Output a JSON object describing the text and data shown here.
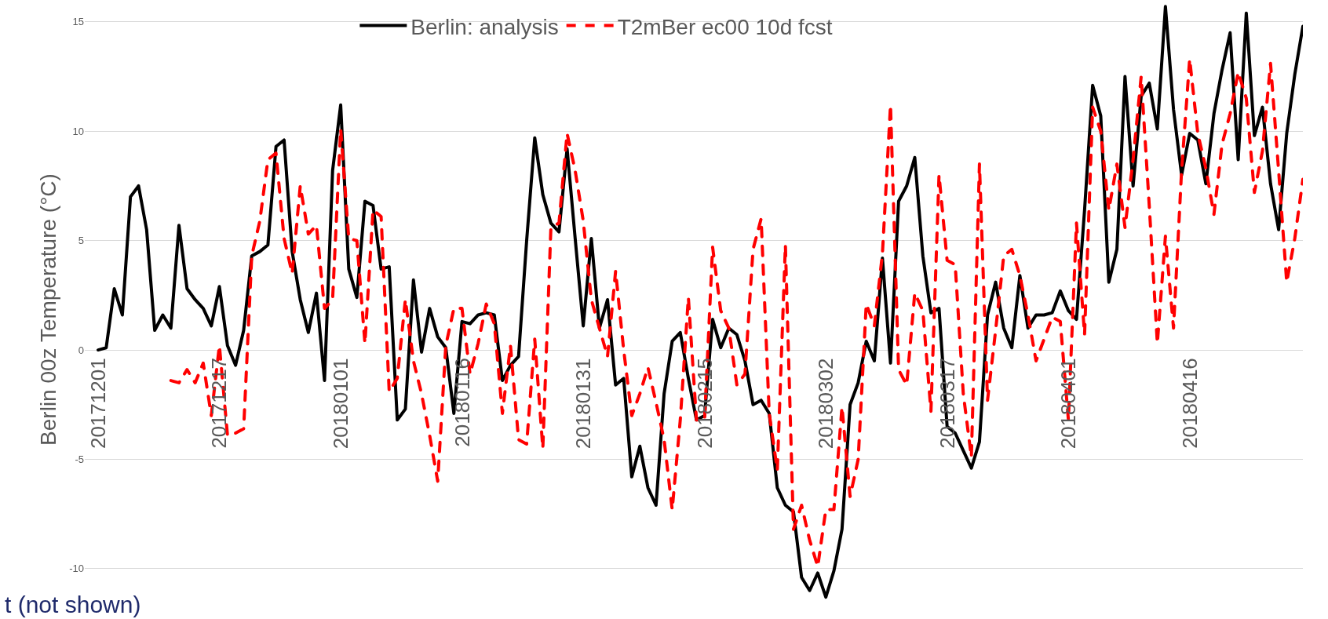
{
  "chart_data": {
    "type": "line",
    "ylabel": "Berlin 00z Temperature (°C)",
    "categories": [
      "20171201",
      null,
      null,
      null,
      null,
      null,
      null,
      null,
      null,
      null,
      null,
      null,
      null,
      null,
      null,
      "20171217",
      null,
      null,
      null,
      null,
      null,
      null,
      null,
      null,
      null,
      null,
      null,
      null,
      null,
      null,
      "20180101",
      null,
      null,
      null,
      null,
      null,
      null,
      null,
      null,
      null,
      null,
      null,
      null,
      null,
      null,
      "20180116",
      null,
      null,
      null,
      null,
      null,
      null,
      null,
      null,
      null,
      null,
      null,
      null,
      null,
      null,
      "20180131",
      null,
      null,
      null,
      null,
      null,
      null,
      null,
      null,
      null,
      null,
      null,
      null,
      null,
      null,
      "20180215",
      null,
      null,
      null,
      null,
      null,
      null,
      null,
      null,
      null,
      null,
      null,
      null,
      null,
      null,
      "20180302",
      null,
      null,
      null,
      null,
      null,
      null,
      null,
      null,
      null,
      null,
      null,
      null,
      null,
      null,
      "20180317",
      null,
      null,
      null,
      null,
      null,
      null,
      null,
      null,
      null,
      null,
      null,
      null,
      null,
      null,
      "20180401",
      null,
      null,
      null,
      null,
      null,
      null,
      null,
      null,
      null,
      null,
      null,
      null,
      null,
      null,
      "20180416",
      null,
      null,
      null,
      null,
      null,
      null,
      null,
      null,
      null,
      null,
      null,
      null,
      null,
      null
    ],
    "series": [
      {
        "name": "Berlin: analysis",
        "color": "#000000",
        "line_style": "solid",
        "values": [
          0,
          0.1,
          2.8,
          1.6,
          7.0,
          7.5,
          5.5,
          0.9,
          1.6,
          1.0,
          5.7,
          2.8,
          2.3,
          1.9,
          1.1,
          2.9,
          0.2,
          -0.7,
          0.9,
          4.3,
          4.5,
          4.8,
          9.3,
          9.6,
          4.5,
          2.3,
          0.8,
          2.6,
          -1.4,
          8.2,
          11.2,
          3.7,
          2.4,
          6.8,
          6.6,
          3.7,
          3.8,
          -3.2,
          -2.7,
          3.2,
          -0.1,
          1.9,
          0.6,
          0.1,
          -2.9,
          1.3,
          1.2,
          1.6,
          1.7,
          1.6,
          -1.4,
          -0.7,
          -0.3,
          5.0,
          9.7,
          7.1,
          5.8,
          5.4,
          9.2,
          5.1,
          1.1,
          5.1,
          1.0,
          2.3,
          -1.6,
          -1.3,
          -5.8,
          -4.4,
          -6.3,
          -7.1,
          -2.0,
          0.4,
          0.8,
          -1.3,
          -3.2,
          -3.0,
          1.4,
          0.1,
          1.0,
          0.7,
          -0.5,
          -2.5,
          -2.3,
          -2.9,
          -6.3,
          -7.1,
          -7.4,
          -10.4,
          -11.0,
          -10.2,
          -11.3,
          -10.1,
          -8.2,
          -2.5,
          -1.5,
          0.4,
          -0.5,
          4.2,
          -0.6,
          6.8,
          7.5,
          8.8,
          4.3,
          1.7,
          1.9,
          -3.5,
          -3.8,
          -4.6,
          -5.4,
          -4.2,
          1.6,
          3.1,
          1.0,
          0.1,
          3.4,
          1.0,
          1.6,
          1.6,
          1.7,
          2.7,
          1.8,
          1.4,
          6.4,
          12.1,
          10.7,
          3.1,
          4.6,
          12.5,
          7.5,
          11.6,
          12.2,
          10.1,
          15.7,
          11.0,
          8.0,
          9.9,
          9.6,
          7.6,
          10.8,
          12.8,
          14.5,
          8.7,
          15.4,
          9.8,
          11.1,
          7.6,
          5.5,
          9.9,
          12.6,
          14.8
        ]
      },
      {
        "name": "T2mBer ec00 10d fcst",
        "color": "#ff0000",
        "line_style": "dashed",
        "values": [
          null,
          null,
          null,
          null,
          null,
          null,
          null,
          null,
          null,
          -1.4,
          -1.5,
          -0.9,
          -1.5,
          -0.6,
          -3.0,
          0.2,
          -3.9,
          -3.8,
          -3.6,
          4.3,
          5.9,
          8.7,
          9.0,
          5.1,
          3.5,
          7.5,
          5.3,
          5.7,
          1.9,
          2.3,
          10.1,
          5.1,
          5.0,
          0.3,
          6.4,
          6.1,
          -1.9,
          -1.3,
          2.3,
          -0.5,
          -2.0,
          -3.9,
          -6.0,
          0.2,
          1.9,
          1.9,
          -1.1,
          0.3,
          2.1,
          1.2,
          -2.9,
          0.2,
          -4.1,
          -4.3,
          0.5,
          -4.5,
          5.6,
          5.8,
          9.9,
          8.2,
          5.9,
          2.3,
          1.0,
          -0.3,
          3.6,
          0.0,
          -3.0,
          -2.0,
          -0.8,
          -2.4,
          -4.1,
          -7.3,
          -3.2,
          2.4,
          -3.2,
          -3.2,
          4.7,
          1.8,
          1.0,
          -1.6,
          -1.1,
          4.6,
          6.0,
          -2.9,
          -5.5,
          4.8,
          -8.2,
          -7.1,
          -8.7,
          -9.9,
          -7.3,
          -7.3,
          -2.6,
          -6.7,
          -5.0,
          2.1,
          1.1,
          4.4,
          11.2,
          -0.9,
          -1.6,
          2.6,
          1.8,
          -2.8,
          8.0,
          4.1,
          3.9,
          -2.0,
          -4.9,
          8.5,
          -2.3,
          0.9,
          4.3,
          4.6,
          3.4,
          1.6,
          -0.5,
          0.5,
          1.5,
          1.3,
          -3.2,
          5.8,
          0.7,
          11.1,
          10.0,
          6.4,
          8.5,
          5.6,
          8.7,
          12.5,
          6.6,
          0.3,
          5.2,
          1.0,
          8.2,
          13.3,
          9.9,
          8.3,
          6.2,
          9.4,
          10.8,
          12.7,
          11.5,
          7.2,
          9.1,
          13.1,
          8.2,
          3.1,
          5.1,
          7.8
        ]
      }
    ],
    "ylim": [
      -12.3,
      16.0
    ],
    "yticks": [
      -10,
      -5,
      0,
      5,
      10,
      15
    ],
    "grid": "y",
    "legend": "top",
    "marker": "none",
    "annotations": [
      "t (not shown)"
    ]
  }
}
